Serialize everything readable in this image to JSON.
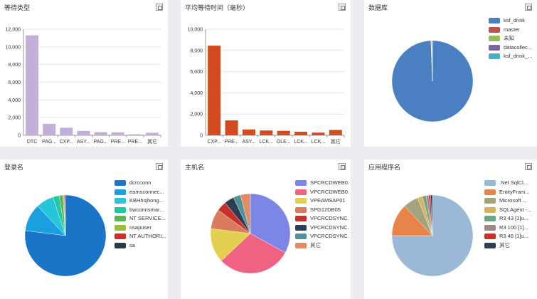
{
  "panels": [
    {
      "title": "等待类型",
      "close_label": "×"
    },
    {
      "title": "平均等待时间（毫秒）",
      "close_label": "×"
    },
    {
      "title": "数据库",
      "close_label": "×"
    },
    {
      "title": "登录名",
      "close_label": "×"
    },
    {
      "title": "主机名",
      "close_label": "×"
    },
    {
      "title": "应用程序名",
      "close_label": "×"
    }
  ],
  "chart_data": [
    {
      "type": "bar",
      "title": "等待类型",
      "categories": [
        "DTC",
        "PAG...",
        "CXP...",
        "ASY...",
        "PAG...",
        "PRE...",
        "PRE...",
        "其它"
      ],
      "values": [
        11300,
        1300,
        850,
        500,
        350,
        320,
        120,
        280
      ],
      "ylim": [
        0,
        12000
      ],
      "yticks": [
        "0",
        "2,000",
        "4,000",
        "6,000",
        "8,000",
        "10,000",
        "12,000"
      ],
      "color": "#c2b0d9",
      "grid": true
    },
    {
      "type": "bar",
      "title": "平均等待时间（毫秒）",
      "categories": [
        "CXP...",
        "PRE...",
        "ASY...",
        "LCK...",
        "OLE...",
        "LCK...",
        "LCK...",
        "其它"
      ],
      "values": [
        8450,
        1400,
        550,
        450,
        420,
        330,
        250,
        500
      ],
      "ylim": [
        0,
        10000
      ],
      "yticks": [
        "0",
        "2,000",
        "4,000",
        "6,000",
        "8,000",
        "10,000"
      ],
      "color": "#d24a1e",
      "grid": true
    },
    {
      "type": "pie",
      "title": "数据库",
      "legend_position": "right",
      "series": [
        {
          "name": "ksf_drink",
          "value": 99.4,
          "color": "#4a7fc1"
        },
        {
          "name": "master",
          "value": 0.2,
          "color": "#c0504d"
        },
        {
          "name": "未知",
          "value": 0.1,
          "color": "#9bbb59"
        },
        {
          "name": "datacollec...",
          "value": 0.1,
          "color": "#8064a2"
        },
        {
          "name": "ksf_drink_...",
          "value": 0.2,
          "color": "#4bacc6"
        }
      ]
    },
    {
      "type": "pie",
      "title": "登录名",
      "legend_position": "right",
      "series": [
        {
          "name": "dcrcconn",
          "value": 77,
          "color": "#1a75c9"
        },
        {
          "name": "eamsconnec...",
          "value": 11,
          "color": "#1aa0e0"
        },
        {
          "name": "KBHhsjhong...",
          "value": 7,
          "color": "#26c6da"
        },
        {
          "name": "bwconnsmar...",
          "value": 2.5,
          "color": "#1fc8a1"
        },
        {
          "name": "NT SERVICE...",
          "value": 1.5,
          "color": "#5ab552"
        },
        {
          "name": "nsapuser",
          "value": 0.4,
          "color": "#9bbf3b"
        },
        {
          "name": "NT AUTHORI...",
          "value": 0.3,
          "color": "#c9302c"
        },
        {
          "name": "sa",
          "value": 0.3,
          "color": "#2b3a4a"
        }
      ]
    },
    {
      "type": "pie",
      "title": "主机名",
      "legend_position": "right",
      "series": [
        {
          "name": "SPCRCDWEB0...",
          "value": 33,
          "color": "#7b86e6"
        },
        {
          "name": "VPCRCDWEB0...",
          "value": 30,
          "color": "#f06282"
        },
        {
          "name": "VPEAMSAP01",
          "value": 14,
          "color": "#e3d04e"
        },
        {
          "name": "SPG12DB05",
          "value": 8,
          "color": "#d97c5e"
        },
        {
          "name": "VPCRCDSYNC...",
          "value": 4,
          "color": "#c9302c"
        },
        {
          "name": "VPCRCDSYNC...",
          "value": 4,
          "color": "#2d3e50"
        },
        {
          "name": "VPCRCDSYNC...",
          "value": 3,
          "color": "#54909a"
        },
        {
          "name": "其它",
          "value": 4,
          "color": "#e38b62"
        }
      ]
    },
    {
      "type": "pie",
      "title": "应用程序名",
      "legend_position": "right",
      "series": [
        {
          "name": ".Net SqlCl...",
          "value": 75,
          "color": "#9bb8d6"
        },
        {
          "name": "EntityFram...",
          "value": 13,
          "color": "#e8834a"
        },
        {
          "name": "Microsoft ...",
          "value": 6,
          "color": "#a3a380"
        },
        {
          "name": "SQLAgent -...",
          "value": 2,
          "color": "#d9b25c"
        },
        {
          "name": "R3 43 [1]u...",
          "value": 1.5,
          "color": "#6ba58a"
        },
        {
          "name": "R3 100 [1]...",
          "value": 1,
          "color": "#a08585"
        },
        {
          "name": "R3 46 [1]u...",
          "value": 0.8,
          "color": "#c9302c"
        },
        {
          "name": "其它",
          "value": 0.7,
          "color": "#2d3e50"
        }
      ]
    }
  ]
}
